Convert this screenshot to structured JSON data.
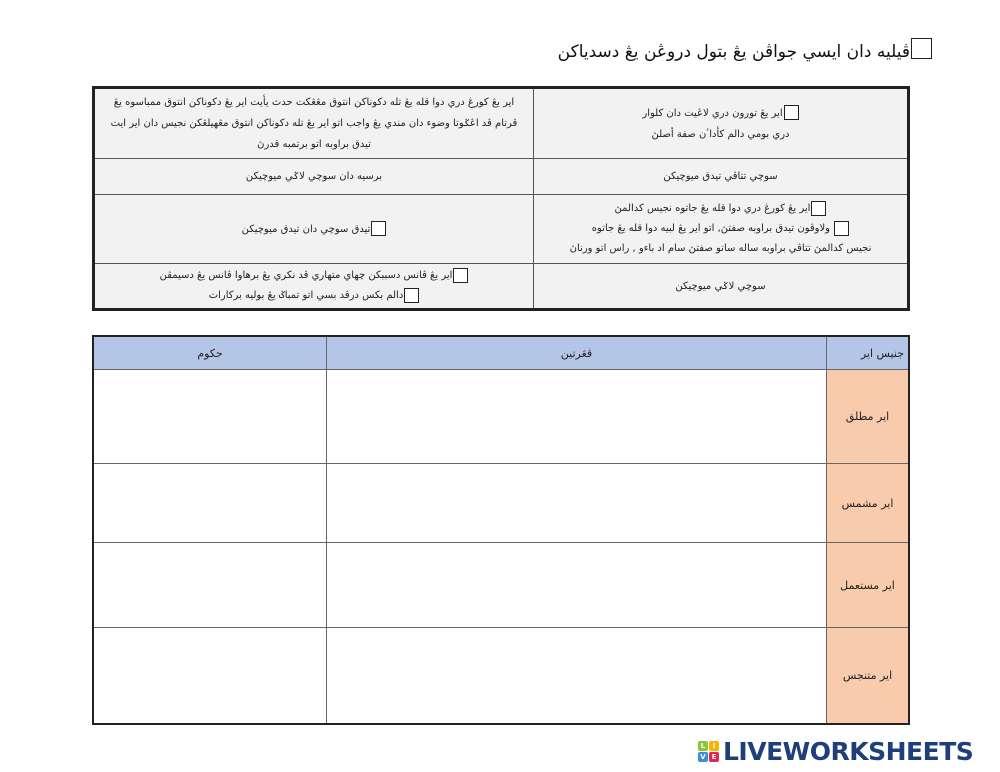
{
  "title": "ڤيليه دان ايسي جواڤن يڠ بتول دروڠن يڠ دسدياكن",
  "options": [
    {
      "right_lines": [
        "اير يڠ تورون دري لاڠيت دان كلوار",
        "دري بومي دالم كأداٴن صفة أصلڽ"
      ],
      "left_lines": [
        "اير يڠ كورڠ دري دوا قله يڠ تله دكوناكن انتوق مڠڠكت حدث يأيت اير يڠ دكوناكن انتوق ممباسوه يڠ",
        "ڤرتام ڤد اڠݢوتا وضوء دان مندي يڠ  واجب اتو اير يڠ تله دكوناكن انتوق مڠهيلڠكن نجيس دان اير ايت",
        "تيدق براوبه اتو برتمبه قدرڽ"
      ]
    },
    {
      "right": "سوچي تتاڤي تيدق ميوچيكن",
      "left": "برسيه دان سوچي لاݢي ميوچيكن"
    },
    {
      "right_lines": [
        "اير يڠ كورڠ دري دوا قله يڠ جاتوه نجيس كدالمڽ",
        "ولاوڤون تيدق براوبه صفتڽ, اتو اير يڠ لبيه دوا قله يڠ جاتوه",
        "نجيس كدالمڽ تتاڤي براوبه ساله ساتو صفتڽ سام اد باءو , راس اتو ورناڽ"
      ],
      "left": "تيدق سوچي دان تيدق ميوچيكن"
    },
    {
      "right": "سوچي لاݢي ميوچيكن",
      "left_lines": [
        "اير يڠ ڤانس دسببكن چهاي متهاري ڤد نكري يڠ برهاوا ڤانس يڠ دسيمڤن",
        "دالم بكس درڤد بسي اتو تمباݢ يڠ بوليه بركارات"
      ]
    }
  ],
  "table": {
    "headers": {
      "ruling": "حكوم",
      "meaning": "ڤڠرتين",
      "type": "جنيس اير"
    },
    "rows": [
      {
        "type": "اير مطلق"
      },
      {
        "type": "اير مشمس"
      },
      {
        "type": "اير مستعمل"
      },
      {
        "type": "اير متنجس"
      }
    ]
  },
  "colors": {
    "header_bg": "#b4c6e7",
    "type_bg": "#f8cbad",
    "option_bg": "#f2f2f2",
    "logo": "#1f3f7a"
  },
  "logo": {
    "text": "LIVEWORKSHEETS",
    "badge": [
      "L",
      "I",
      "V",
      "E"
    ]
  }
}
